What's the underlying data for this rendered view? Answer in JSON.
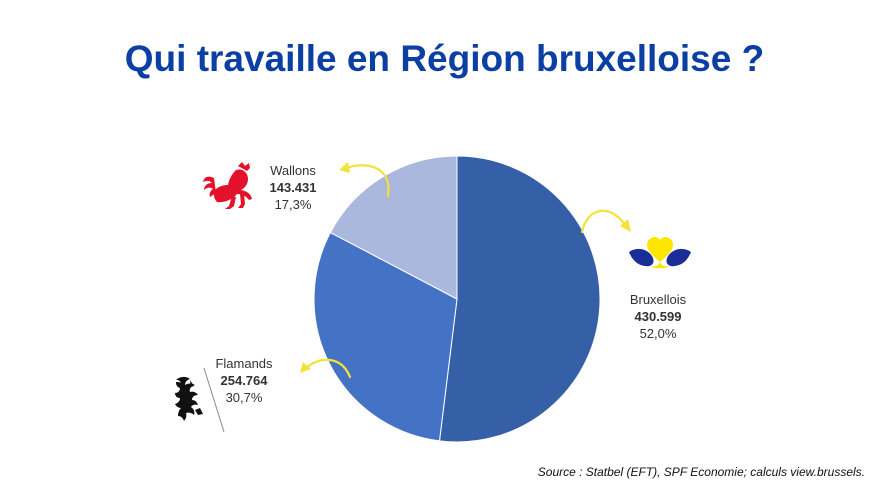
{
  "chart_data": {
    "type": "pie",
    "title": "Qui travaille en Région bruxelloise ?",
    "slices": [
      {
        "name": "Bruxellois",
        "value_label": "430.599",
        "value": 430599,
        "percent_label": "52,0%",
        "percent": 52.0,
        "color": "#355fa6",
        "icon": "brussels-iris-icon"
      },
      {
        "name": "Flamands",
        "value_label": "254.764",
        "value": 254764,
        "percent_label": "30,7%",
        "percent": 30.7,
        "color": "#4472c4",
        "icon": "flemish-lion-icon"
      },
      {
        "name": "Wallons",
        "value_label": "143.431",
        "value": 143431,
        "percent_label": "17,3%",
        "percent": 17.3,
        "color": "#a9b8dc",
        "icon": "walloon-rooster-icon"
      }
    ],
    "source": "Source : Statbel (EFT), SPF Economie; calculs view.brussels."
  },
  "colors": {
    "title": "#0b3fa3",
    "arrow": "#f2e23a",
    "rooster": "#e3122a",
    "iris_petal": "#1a2d99",
    "iris_heart": "#ffe600"
  }
}
